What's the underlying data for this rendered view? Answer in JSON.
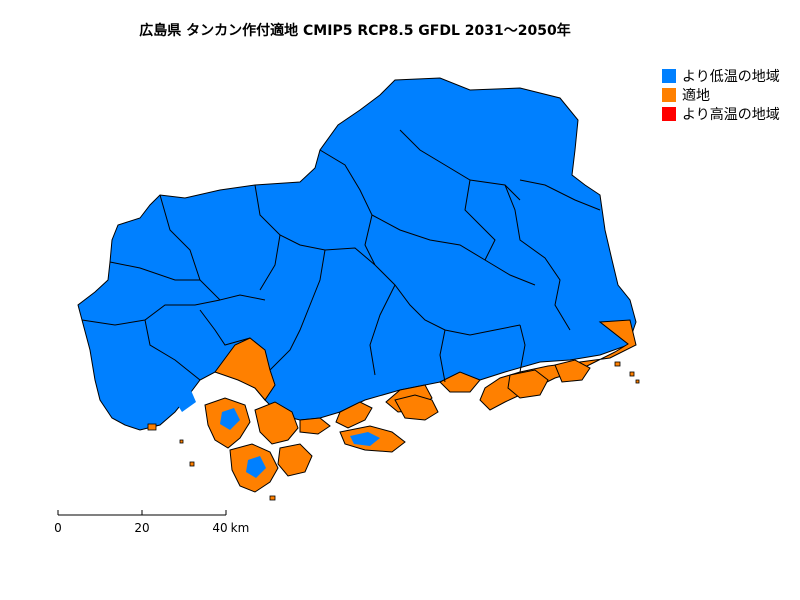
{
  "title": "広島県 タンカン作付適地 CMIP5 RCP8.5 GFDL 2031～2050年",
  "legend": [
    {
      "label": "より低温の地域",
      "color": "#0080FF"
    },
    {
      "label": "適地",
      "color": "#FF8000"
    },
    {
      "label": "より高温の地域",
      "color": "#FF0000"
    }
  ],
  "scale": {
    "ticks": [
      "0",
      "20",
      "40"
    ],
    "unit": "km"
  },
  "colors": {
    "cold": "#0080FF",
    "suitable": "#FF8000",
    "hot": "#FF0000",
    "border": "#000000"
  }
}
